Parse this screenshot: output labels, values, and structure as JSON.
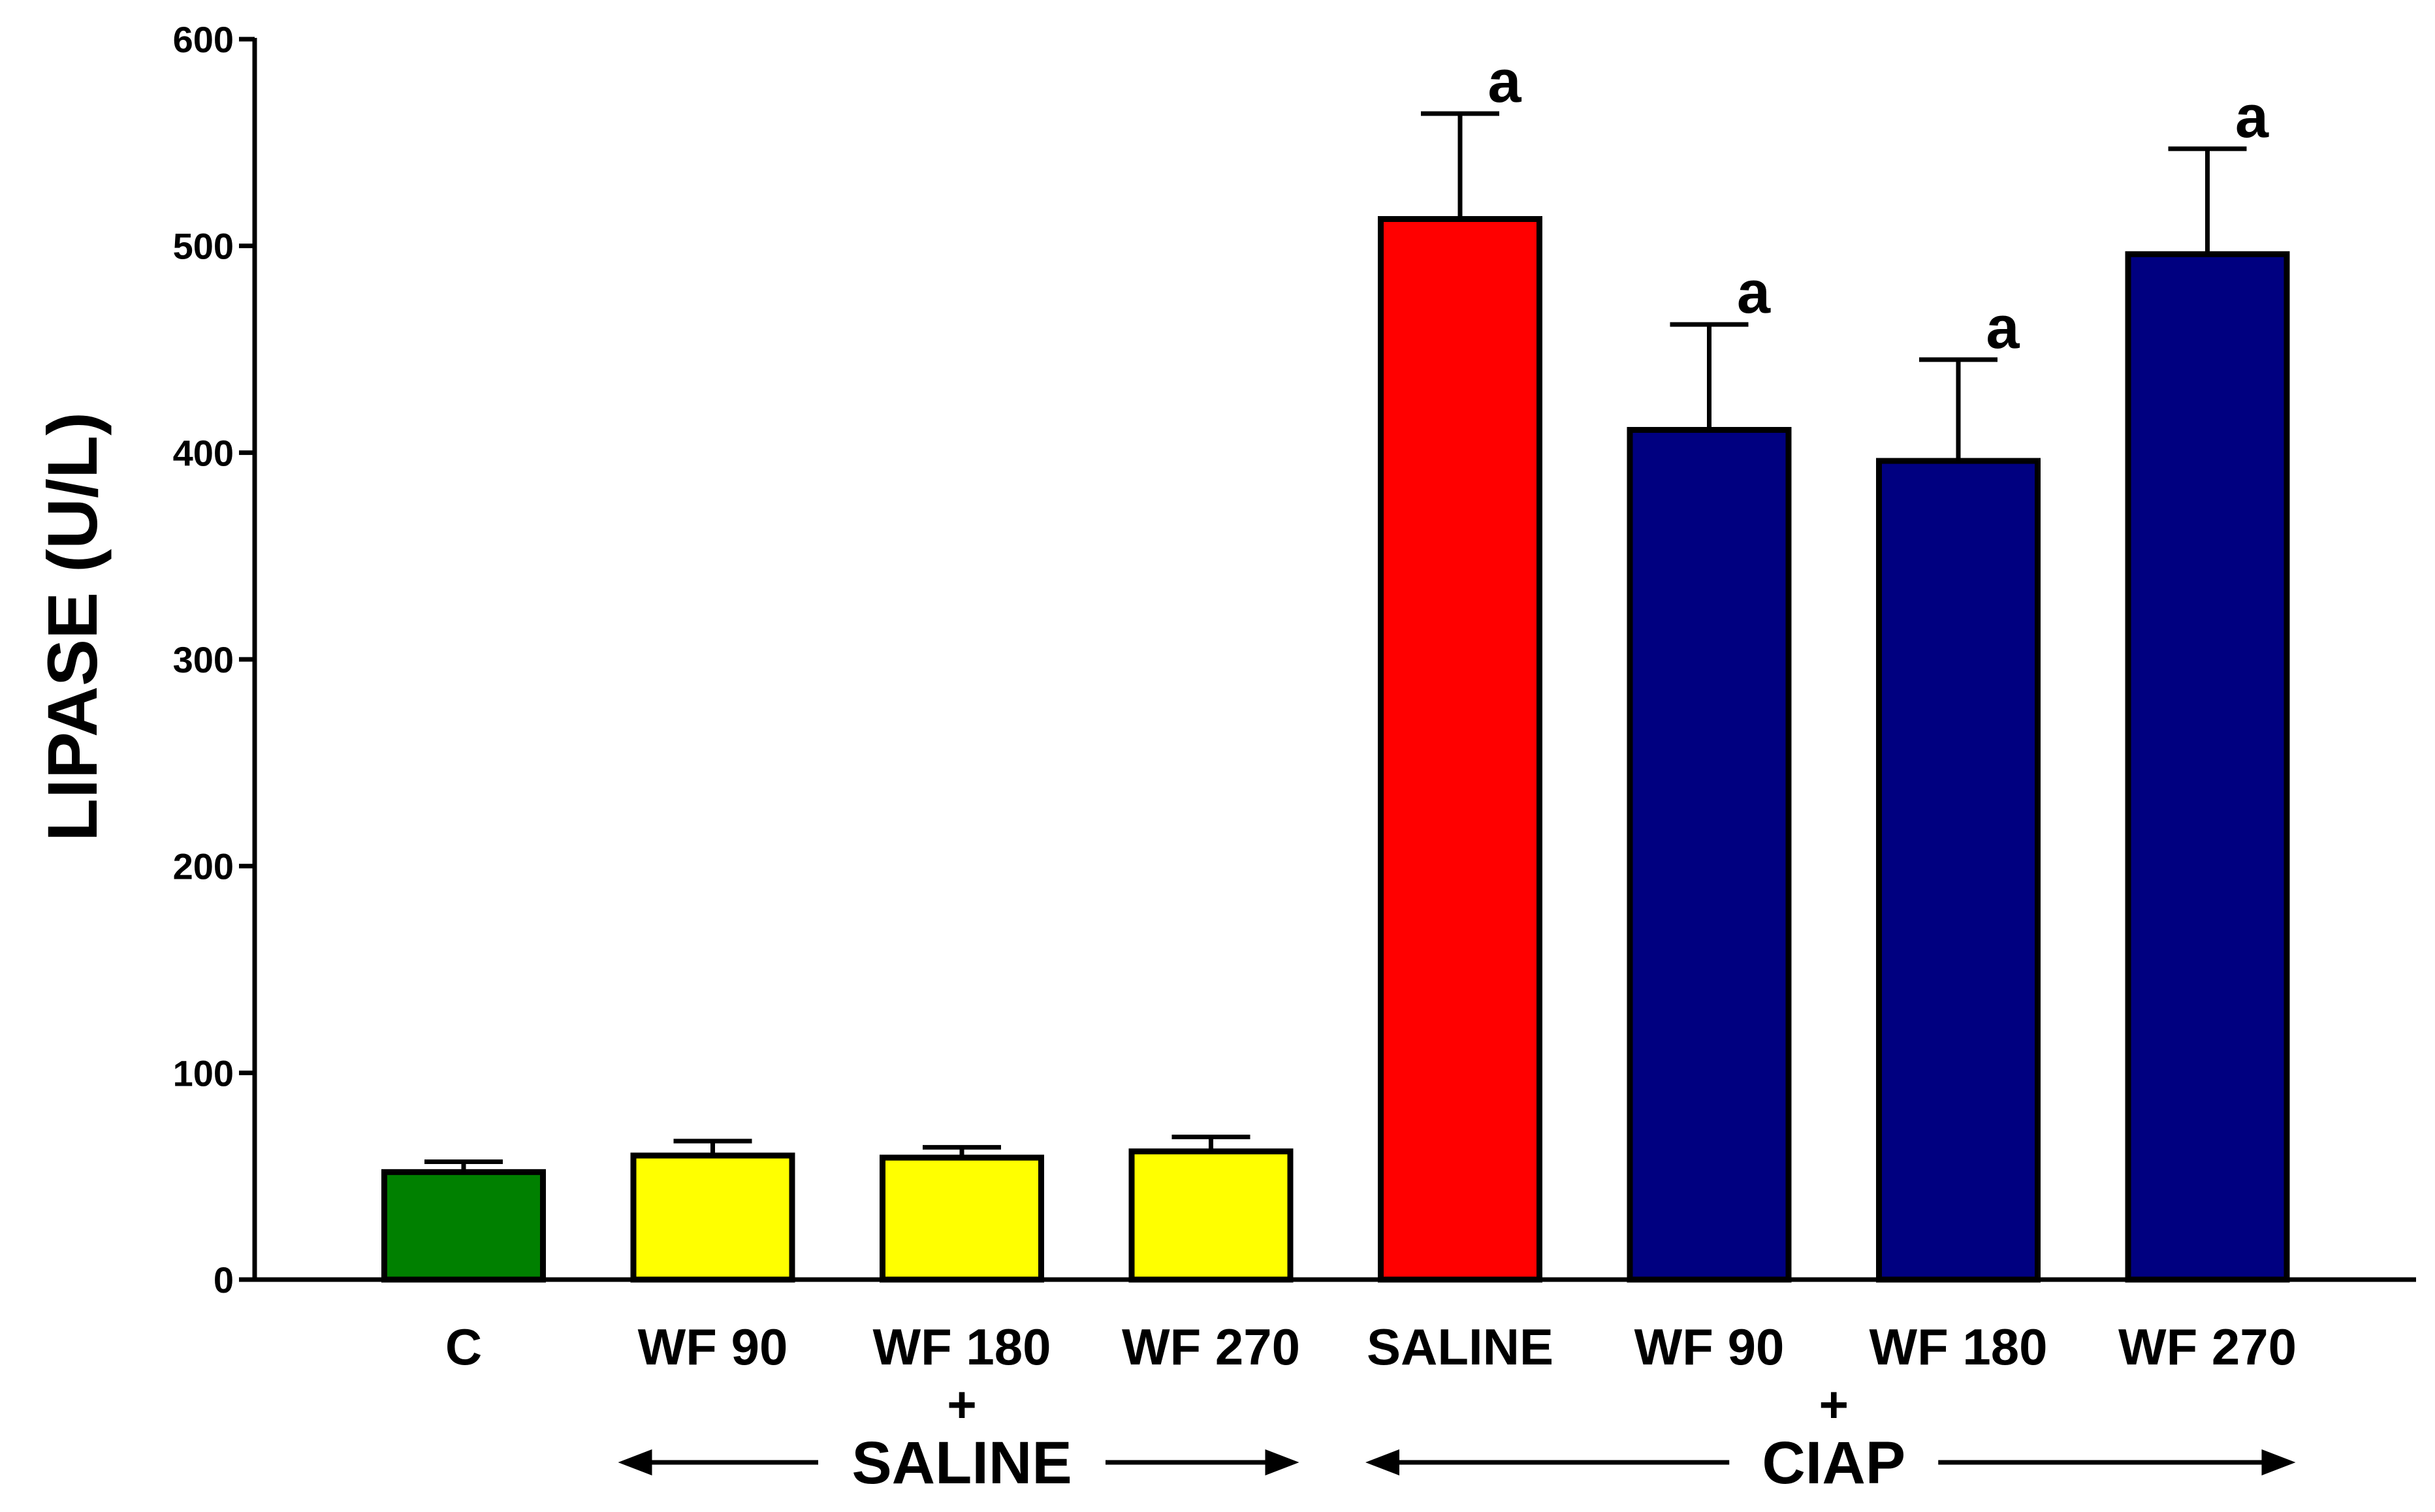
{
  "chart_data": {
    "type": "bar",
    "title": "",
    "xlabel": "",
    "ylabel": "LIPASE (U/L)",
    "ylim": [
      0,
      600
    ],
    "yticks": [
      0,
      100,
      200,
      300,
      400,
      500,
      600
    ],
    "grid": false,
    "categories": [
      "C",
      "WF 90",
      "WF 180",
      "WF 270",
      "SALINE",
      "WF 90",
      "WF 180",
      "WF 270"
    ],
    "values": [
      52,
      60,
      59,
      62,
      513,
      411,
      396,
      496
    ],
    "errors": [
      5,
      7,
      5,
      7,
      51,
      51,
      49,
      51
    ],
    "colors": [
      "#008000",
      "#ffff00",
      "#ffff00",
      "#ffff00",
      "#ff0000",
      "#000080",
      "#000080",
      "#000080"
    ],
    "significance": [
      "",
      "",
      "",
      "",
      "a",
      "a",
      "a",
      "a"
    ],
    "groups": [
      {
        "label": "SALINE",
        "plus": "+",
        "from": 1,
        "to": 3
      },
      {
        "label": "CIAP",
        "plus": "+",
        "from": 4,
        "to": 7
      }
    ]
  }
}
